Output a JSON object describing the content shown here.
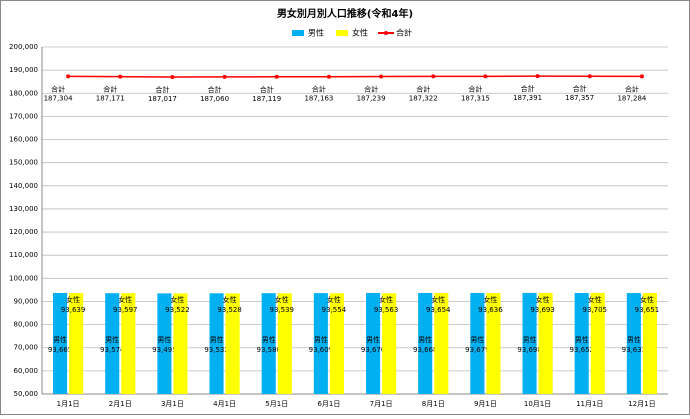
{
  "chart_data": {
    "type": "bar-line",
    "title": "男女別月別人口推移(令和4年)",
    "categories": [
      "1月1日",
      "2月1日",
      "3月1日",
      "4月1日",
      "5月1日",
      "6月1日",
      "7月1日",
      "8月1日",
      "9月1日",
      "10月1日",
      "11月1日",
      "12月1日"
    ],
    "series": [
      {
        "name": "男性",
        "type": "bar",
        "color": "#00b0f0",
        "values": [
          93665,
          93574,
          93495,
          93532,
          93580,
          93609,
          93676,
          93668,
          93679,
          93698,
          93652,
          93633
        ],
        "value_labels": [
          "93,665",
          "93,574",
          "93,495",
          "93,532",
          "93,580",
          "93,609",
          "93,676",
          "93,668",
          "93,679",
          "93,698",
          "93,652",
          "93,633"
        ]
      },
      {
        "name": "女性",
        "type": "bar",
        "color": "#ffff00",
        "values": [
          93639,
          93597,
          93522,
          93528,
          93539,
          93554,
          93563,
          93654,
          93636,
          93693,
          93705,
          93651
        ],
        "value_labels": [
          "93,639",
          "93,597",
          "93,522",
          "93,528",
          "93,539",
          "93,554",
          "93,563",
          "93,654",
          "93,636",
          "93,693",
          "93,705",
          "93,651"
        ]
      },
      {
        "name": "合計",
        "type": "line",
        "color": "#ff0000",
        "values": [
          187304,
          187171,
          187017,
          187060,
          187119,
          187163,
          187239,
          187322,
          187315,
          187391,
          187357,
          187284
        ],
        "value_labels": [
          "187,304",
          "187,171",
          "187,017",
          "187,060",
          "187,119",
          "187,163",
          "187,239",
          "187,322",
          "187,315",
          "187,391",
          "187,357",
          "187,284"
        ]
      }
    ],
    "ylim": [
      50000,
      200000
    ],
    "yticks": [
      {
        "value": 50000,
        "label": "50,000"
      },
      {
        "value": 60000,
        "label": "60,000"
      },
      {
        "value": 70000,
        "label": "70,000"
      },
      {
        "value": 80000,
        "label": "80,000"
      },
      {
        "value": 90000,
        "label": "90,000"
      },
      {
        "value": 100000,
        "label": "100,000"
      },
      {
        "value": 110000,
        "label": "110,000"
      },
      {
        "value": 120000,
        "label": "120,000"
      },
      {
        "value": 130000,
        "label": "130,000"
      },
      {
        "value": 140000,
        "label": "140,000"
      },
      {
        "value": 150000,
        "label": "150,000"
      },
      {
        "value": 160000,
        "label": "160,000"
      },
      {
        "value": 170000,
        "label": "170,000"
      },
      {
        "value": 180000,
        "label": "180,000"
      },
      {
        "value": 190000,
        "label": "190,000"
      },
      {
        "value": 200000,
        "label": "200,000"
      }
    ],
    "grid": true,
    "legend": "top"
  }
}
